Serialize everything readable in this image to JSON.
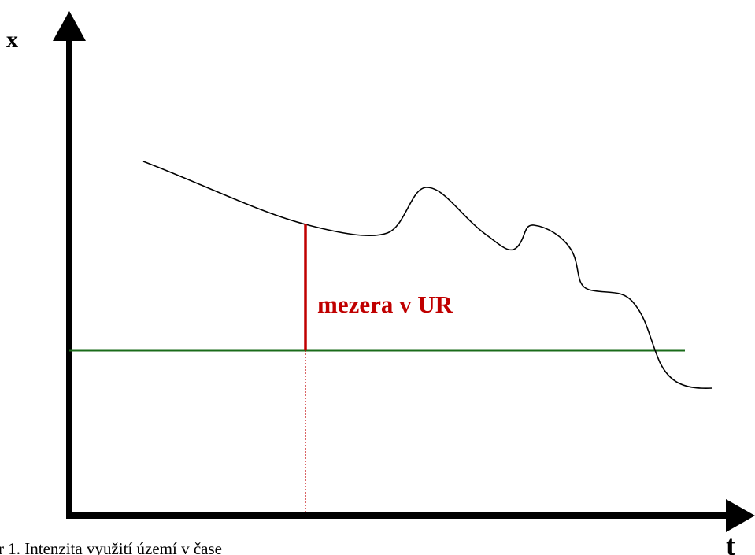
{
  "axes": {
    "y_label": "x",
    "x_label": "t"
  },
  "gap_label": "mezera v UR",
  "caption": "r 1. Intenzita využití území v čase"
}
